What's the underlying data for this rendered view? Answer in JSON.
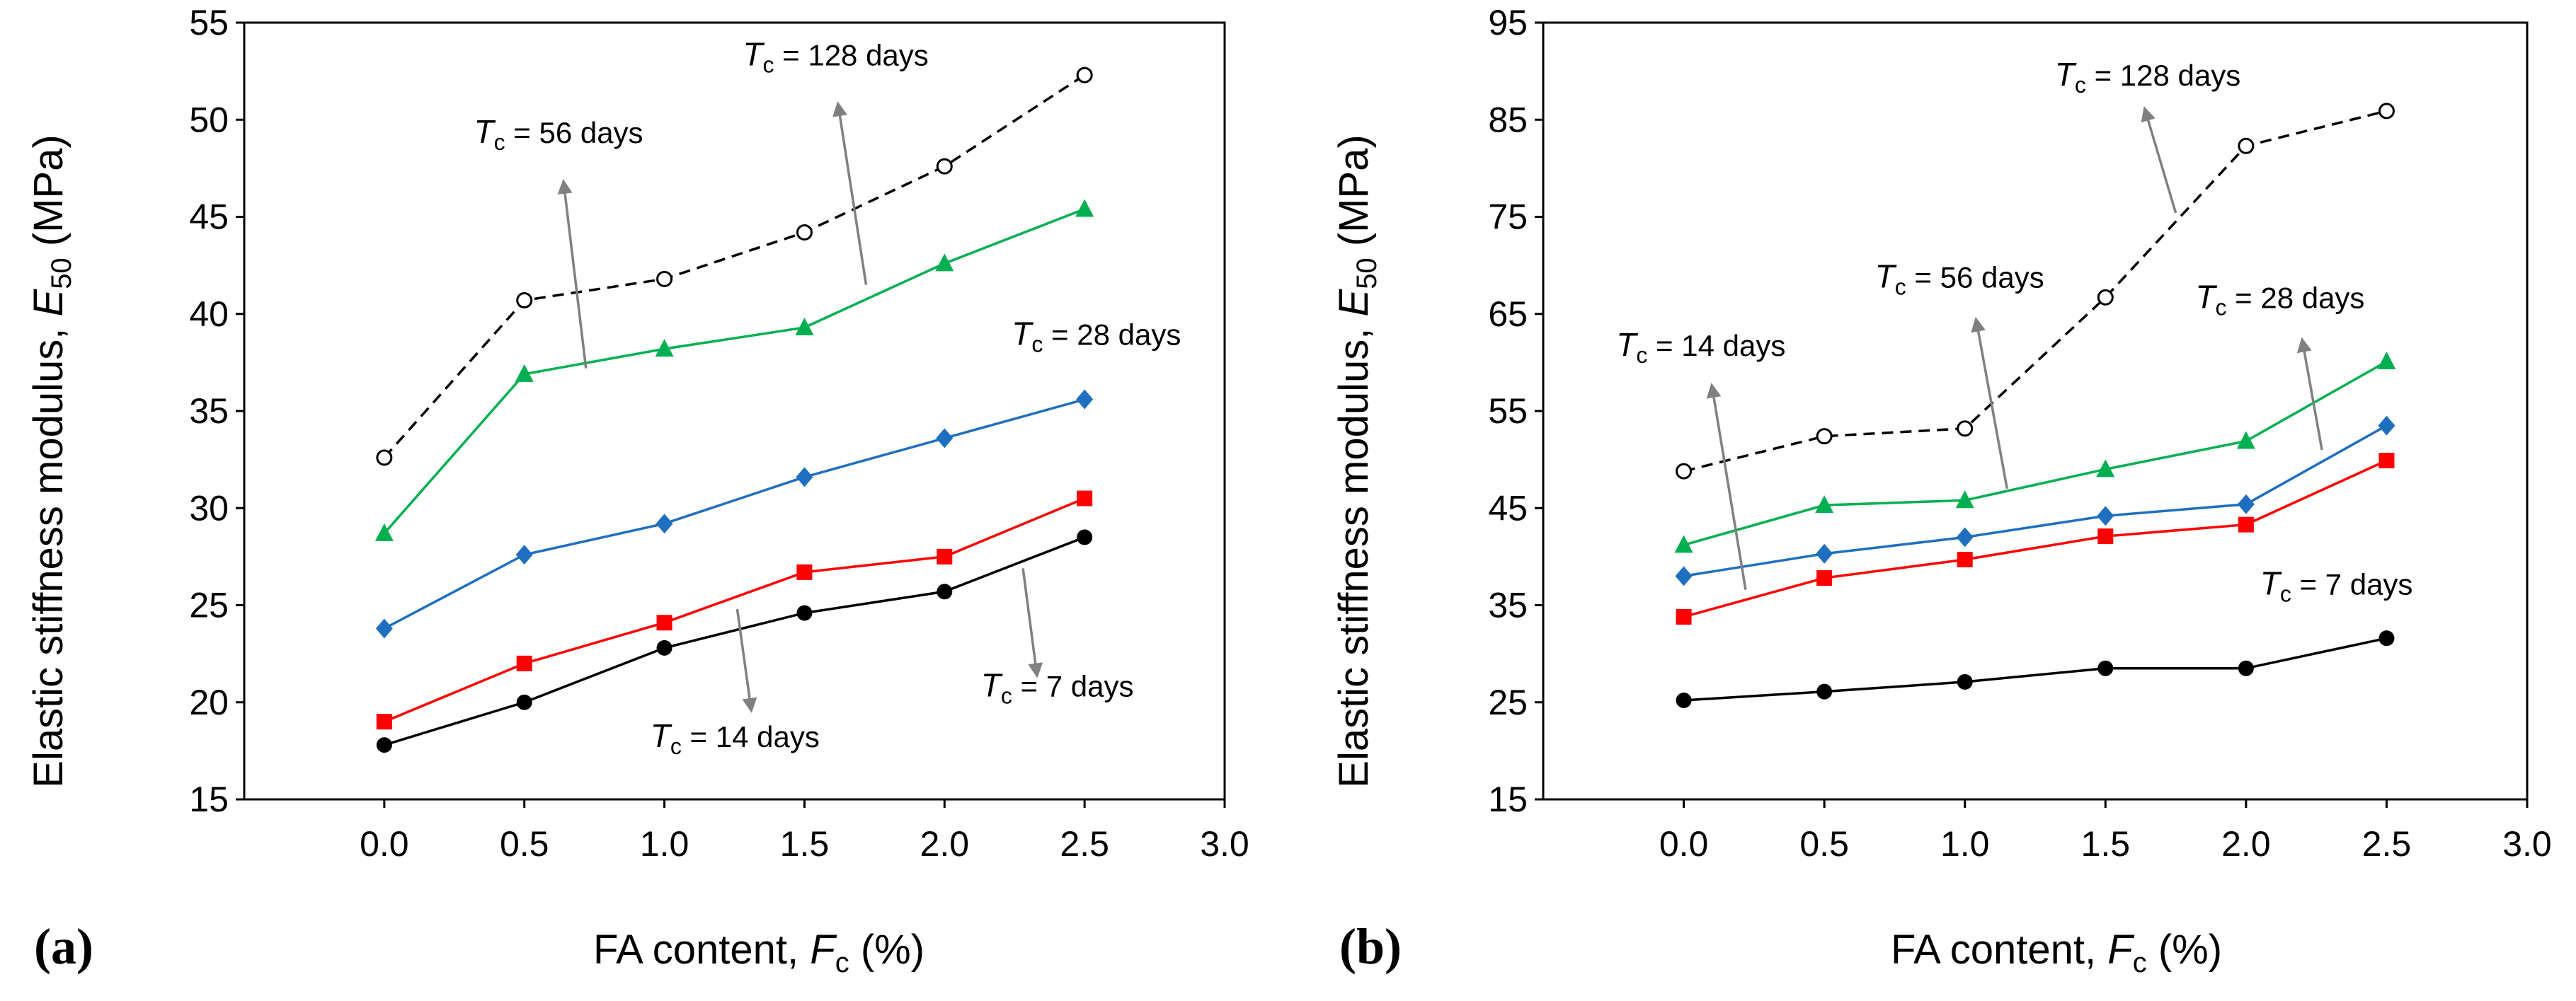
{
  "figure": {
    "x_label_prefix": "FA content, ",
    "x_label_var": "F",
    "x_label_sub": "c",
    "x_label_suffix": " (%)",
    "y_label_prefix": "Elastic stiffness modulus, ",
    "y_label_var": "E",
    "y_label_sub": "50",
    "y_label_suffix": " (MPa)"
  },
  "colors": {
    "tc7": "#000000",
    "tc14": "#ff0000",
    "tc28": "#1f6fc0",
    "tc56": "#00b050",
    "tc128": "#000000",
    "arrow": "#808080"
  },
  "chart_data": [
    {
      "panel_label": "(a)",
      "type": "line",
      "xlim": [
        -0.5,
        3.0
      ],
      "ylim": [
        15,
        55
      ],
      "xticks": [
        "0.0",
        "0.5",
        "1.0",
        "1.5",
        "2.0",
        "2.5",
        "3.0"
      ],
      "yticks": [
        "15",
        "20",
        "25",
        "30",
        "35",
        "40",
        "45",
        "50",
        "55"
      ],
      "x": [
        0.0,
        0.5,
        1.0,
        1.5,
        2.0,
        2.5
      ],
      "series": [
        {
          "key": "tc7",
          "name": "Tc = 7 days",
          "marker": "circle",
          "dashed": false,
          "values": [
            17.8,
            20.0,
            22.8,
            24.6,
            25.7,
            28.5
          ]
        },
        {
          "key": "tc14",
          "name": "Tc = 14 days",
          "marker": "square",
          "dashed": false,
          "values": [
            19.0,
            22.0,
            24.1,
            26.7,
            27.5,
            30.5
          ]
        },
        {
          "key": "tc28",
          "name": "Tc = 28 days",
          "marker": "diamond",
          "dashed": false,
          "values": [
            23.8,
            27.6,
            29.2,
            31.6,
            33.6,
            35.6
          ]
        },
        {
          "key": "tc56",
          "name": "Tc = 56 days",
          "marker": "triangle",
          "dashed": false,
          "values": [
            28.7,
            36.9,
            38.2,
            39.3,
            42.6,
            45.4
          ]
        },
        {
          "key": "tc128",
          "name": "Tc = 128 days",
          "marker": "open-circle",
          "dashed": true,
          "values": [
            32.6,
            40.7,
            41.8,
            44.2,
            47.6,
            52.3
          ]
        }
      ],
      "annotations": [
        {
          "var": "T",
          "sub": "c",
          "text": " = 128 days",
          "x": 1.28,
          "y": 52.8
        },
        {
          "var": "T",
          "sub": "c",
          "text": " = 56 days",
          "x": 0.32,
          "y": 48.8
        },
        {
          "var": "T",
          "sub": "c",
          "text": " = 28 days",
          "x": 2.24,
          "y": 38.4
        },
        {
          "var": "T",
          "sub": "c",
          "text": " = 14 days",
          "x": 0.95,
          "y": 17.7
        },
        {
          "var": "T",
          "sub": "c",
          "text": " = 7 days",
          "x": 2.13,
          "y": 20.3
        }
      ],
      "arrows": [
        {
          "from": [
            1.72,
            41.5
          ],
          "to": [
            1.62,
            50.8
          ]
        },
        {
          "from": [
            0.72,
            37.2
          ],
          "to": [
            0.64,
            46.8
          ]
        },
        {
          "from": [
            1.26,
            24.8
          ],
          "to": [
            1.31,
            19.6
          ]
        },
        {
          "from": [
            2.28,
            26.9
          ],
          "to": [
            2.33,
            21.4
          ]
        }
      ]
    },
    {
      "panel_label": "(b)",
      "type": "line",
      "xlim": [
        -0.5,
        3.0
      ],
      "ylim": [
        15,
        95
      ],
      "xticks": [
        "0.0",
        "0.5",
        "1.0",
        "1.5",
        "2.0",
        "2.5",
        "3.0"
      ],
      "yticks": [
        "15",
        "25",
        "35",
        "45",
        "55",
        "65",
        "75",
        "85",
        "95"
      ],
      "x": [
        0.0,
        0.5,
        1.0,
        1.5,
        2.0,
        2.5
      ],
      "series": [
        {
          "key": "tc7",
          "name": "Tc = 7 days",
          "marker": "circle",
          "dashed": false,
          "values": [
            25.2,
            26.1,
            27.1,
            28.5,
            28.5,
            31.6
          ]
        },
        {
          "key": "tc14",
          "name": "Tc = 14 days",
          "marker": "square",
          "dashed": false,
          "values": [
            33.8,
            37.8,
            39.7,
            42.1,
            43.3,
            49.9
          ]
        },
        {
          "key": "tc28",
          "name": "Tc = 28 days",
          "marker": "diamond",
          "dashed": false,
          "values": [
            38.0,
            40.3,
            42.0,
            44.2,
            45.4,
            53.5
          ]
        },
        {
          "key": "tc56",
          "name": "Tc = 56 days",
          "marker": "triangle",
          "dashed": false,
          "values": [
            41.2,
            45.3,
            45.8,
            49.0,
            51.9,
            60.1
          ]
        },
        {
          "key": "tc128",
          "name": "Tc = 128 days",
          "marker": "open-circle",
          "dashed": true,
          "values": [
            48.8,
            52.4,
            53.2,
            66.7,
            82.3,
            85.9
          ]
        }
      ],
      "annotations": [
        {
          "var": "T",
          "sub": "c",
          "text": " = 128 days",
          "x": 1.32,
          "y": 88.5
        },
        {
          "var": "T",
          "sub": "c",
          "text": " = 56 days",
          "x": 0.68,
          "y": 67.7
        },
        {
          "var": "T",
          "sub": "c",
          "text": " = 28 days",
          "x": 1.82,
          "y": 65.6
        },
        {
          "var": "T",
          "sub": "c",
          "text": " = 14 days",
          "x": -0.24,
          "y": 60.7
        },
        {
          "var": "T",
          "sub": "c",
          "text": " = 7 days",
          "x": 2.05,
          "y": 36.1
        }
      ],
      "arrows": [
        {
          "from": [
            1.75,
            75.4
          ],
          "to": [
            1.64,
            86.1
          ]
        },
        {
          "from": [
            1.15,
            47.0
          ],
          "to": [
            1.04,
            64.4
          ]
        },
        {
          "from": [
            2.27,
            51.0
          ],
          "to": [
            2.2,
            62.3
          ]
        },
        {
          "from": [
            0.22,
            36.6
          ],
          "to": [
            0.1,
            57.6
          ]
        }
      ]
    }
  ]
}
